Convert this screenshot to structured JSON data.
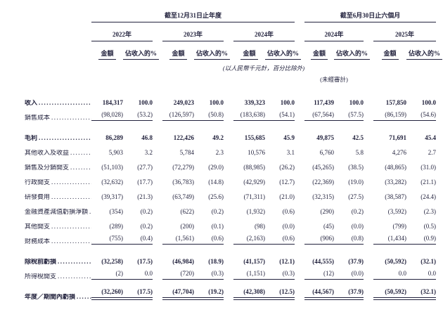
{
  "ink_color": "#22223d",
  "table": {
    "period_groups": [
      {
        "title": "截至12月31日止年度"
      },
      {
        "title": "截至6月30日止六個月"
      }
    ],
    "year_columns": [
      {
        "year": "2022年"
      },
      {
        "year": "2023年"
      },
      {
        "year": "2024年"
      },
      {
        "year": "2024年"
      },
      {
        "year": "2025年"
      }
    ],
    "sub_headers": {
      "amount": "金額",
      "pct": "佔收入的%"
    },
    "notes": {
      "units": "(以人民幣千元計，百分比除外)",
      "unaudited": "(未經審計)"
    },
    "rows": [
      {
        "label": "收入",
        "style": "bold",
        "rule": "none",
        "values": [
          "184,317",
          "100.0",
          "249,023",
          "100.0",
          "339,323",
          "100.0",
          "117,439",
          "100.0",
          "157,850",
          "100.0"
        ]
      },
      {
        "label": "銷售成本",
        "style": "normal",
        "rule": "single",
        "values": [
          "(98,028)",
          "(53.2)",
          "(126,597)",
          "(50.8)",
          "(183,638)",
          "(54.1)",
          "(67,564)",
          "(57.5)",
          "(86,159)",
          "(54.6)"
        ]
      },
      {
        "label": "毛利",
        "style": "bold",
        "rule": "none",
        "values": [
          "86,289",
          "46.8",
          "122,426",
          "49.2",
          "155,685",
          "45.9",
          "49,875",
          "42.5",
          "71,691",
          "45.4"
        ]
      },
      {
        "label": "其他收入及收益",
        "style": "normal",
        "rule": "none",
        "values": [
          "5,903",
          "3.2",
          "5,784",
          "2.3",
          "10,576",
          "3.1",
          "6,760",
          "5.8",
          "4,276",
          "2.7"
        ]
      },
      {
        "label": "銷售及分銷開支",
        "style": "normal",
        "rule": "none",
        "values": [
          "(51,103)",
          "(27.7)",
          "(72,279)",
          "(29.0)",
          "(88,985)",
          "(26.2)",
          "(45,265)",
          "(38.5)",
          "(48,865)",
          "(31.0)"
        ]
      },
      {
        "label": "行政開支",
        "style": "normal",
        "rule": "none",
        "values": [
          "(32,632)",
          "(17.7)",
          "(36,783)",
          "(14.8)",
          "(42,929)",
          "(12.7)",
          "(22,369)",
          "(19.0)",
          "(33,282)",
          "(21.1)"
        ]
      },
      {
        "label": "研發費用",
        "style": "normal",
        "rule": "none",
        "values": [
          "(39,317)",
          "(21.3)",
          "(63,749)",
          "(25.6)",
          "(71,311)",
          "(21.0)",
          "(32,315)",
          "(27.5)",
          "(38,587)",
          "(24.4)"
        ]
      },
      {
        "label": "金融資產減值虧損淨額",
        "style": "normal",
        "rule": "none",
        "values": [
          "(354)",
          "(0.2)",
          "(622)",
          "(0.2)",
          "(1,932)",
          "(0.6)",
          "(290)",
          "(0.2)",
          "(3,592)",
          "(2.3)"
        ]
      },
      {
        "label": "其他開支",
        "style": "normal",
        "rule": "none",
        "values": [
          "(289)",
          "(0.2)",
          "(200)",
          "(0.1)",
          "(98)",
          "(0.0)",
          "(45)",
          "(0.0)",
          "(799)",
          "(0.5)"
        ]
      },
      {
        "label": "財務成本",
        "style": "normal",
        "rule": "single",
        "values": [
          "(755)",
          "(0.4)",
          "(1,561)",
          "(0.6)",
          "(2,163)",
          "(0.6)",
          "(906)",
          "(0.8)",
          "(1,434)",
          "(0.9)"
        ]
      },
      {
        "label": "除稅前虧損",
        "style": "bold",
        "rule": "none",
        "values": [
          "(32,258)",
          "(17.5)",
          "(46,984)",
          "(18.9)",
          "(41,157)",
          "(12.1)",
          "(44,555)",
          "(37.9)",
          "(50,592)",
          "(32.1)"
        ]
      },
      {
        "label": "所得稅開支",
        "style": "normal",
        "rule": "single",
        "values": [
          "(2)",
          "0.0",
          "(720)",
          "(0.3)",
          "(1,151)",
          "(0.3)",
          "(12)",
          "(0.0)",
          "0.0",
          "0.0"
        ]
      },
      {
        "label": "年度／期間內虧損",
        "style": "bold",
        "rule": "double",
        "values": [
          "(32,260)",
          "(17.5)",
          "(47,704)",
          "(19.2)",
          "(42,308)",
          "(12.5)",
          "(44,567)",
          "(37.9)",
          "(50,592)",
          "(32.1)"
        ]
      }
    ]
  }
}
